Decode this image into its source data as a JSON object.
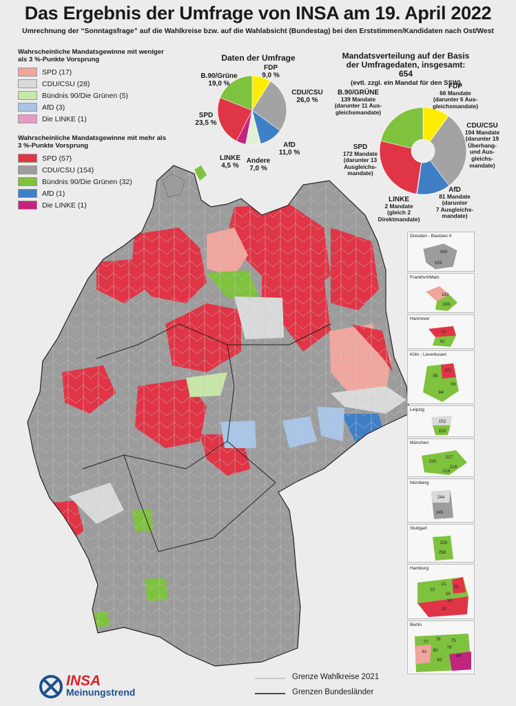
{
  "title": "Das Ergebnis der Umfrage von INSA am 19. April 2022",
  "subtitle": "Umrechnung der “Sonntagsfrage” auf die Wahlkreise bzw. auf die Wahlabsicht (Bundestag) bei den Erststimmen/Kandidaten nach Ost/West",
  "colors": {
    "spd_strong": "#e03546",
    "spd_weak": "#f0a59d",
    "cdu_strong": "#9c9c9c",
    "cdu_weak": "#dadada",
    "gruene_strong": "#7ec23e",
    "gruene_weak": "#c8e6a6",
    "afd_strong": "#3f7fc6",
    "afd_weak": "#a8c4e6",
    "linke_strong": "#c4247f",
    "linke_weak": "#e79bc4",
    "fdp": "#ffec00",
    "andere": "#e2f0d6"
  },
  "legend_weak": {
    "heading": "Wahrscheinliche Mandatsgewinne mit weniger als 3 %-Punkte Vorsprung",
    "items": [
      "SPD (17)",
      "CDU/CSU (28)",
      "Bündnis 90/Die Grünen (5)",
      "AfD (3)",
      "Die LINKE (1)"
    ]
  },
  "legend_strong": {
    "heading": "Wahrscheinliche Mandatsgewinne mit mehr als 3 %-Punkte Vorsprung",
    "items": [
      "SPD (57)",
      "CDU/CSU (154)",
      "Bündnis 90/Die Grünen (32)",
      "AfD (1)",
      "Die LINKE (1)"
    ]
  },
  "survey": {
    "title": "Daten der Umfrage",
    "slices": [
      {
        "party": "FDP",
        "pct": "9,0 %",
        "value": 9.0,
        "color": "#ffec00"
      },
      {
        "party": "CDU/CSU",
        "pct": "26,0 %",
        "value": 26.0,
        "color": "#a3a3a3"
      },
      {
        "party": "AfD",
        "pct": "11,0 %",
        "value": 11.0,
        "color": "#3f7fc6"
      },
      {
        "party": "Andere",
        "pct": "7,0 %",
        "value": 7.0,
        "color": "#e2f0d6"
      },
      {
        "party": "LINKE",
        "pct": "4,5 %",
        "value": 4.5,
        "color": "#c4247f"
      },
      {
        "party": "SPD",
        "pct": "23,5 %",
        "value": 23.5,
        "color": "#e03546"
      },
      {
        "party": "B.90/Grüne",
        "pct": "19,0 %",
        "value": 19.0,
        "color": "#7ec23e"
      }
    ]
  },
  "seats": {
    "title_1": "Mandatsverteilung auf der Basis",
    "title_2": "der Umfragedaten, insgesamt: 654",
    "title_3": "(evtl. zzgl. ein Mandat für den SSW)",
    "slices": [
      {
        "party": "FDP",
        "value": 66,
        "color": "#ffec00"
      },
      {
        "party": "CDU/CSU",
        "value": 194,
        "color": "#a3a3a3"
      },
      {
        "party": "AfD",
        "value": 81,
        "color": "#3f7fc6"
      },
      {
        "party": "LINKE",
        "value": 2,
        "color": "#c4247f"
      },
      {
        "party": "SPD",
        "value": 172,
        "color": "#e03546"
      },
      {
        "party": "B.90/GRÜNE",
        "value": 139,
        "color": "#7ec23e"
      }
    ],
    "labels": {
      "fdp": [
        "FDP",
        "66 Mandate",
        "(darunter 6 Aus-",
        "gleichsmandate)"
      ],
      "cdu": [
        "CDU/CSU",
        "194 Mandate",
        "(darunter 19",
        "Überhang-",
        "und Aus-",
        "gleichs-",
        "mandate)"
      ],
      "afd": [
        "AfD",
        "81 Mandate",
        "(darunter",
        "7 Ausgleichs-",
        "mandate)"
      ],
      "linke": [
        "LINKE",
        "2 Mandate",
        "(gleich 2",
        "Direktmandate)"
      ],
      "spd": [
        "SPD",
        "172 Mandate",
        "(darunter 13",
        "Ausgleichs-",
        "mandate)"
      ],
      "gruene": [
        "B.90/GRÜNE",
        "139 Mandate",
        "(darunter 11 Aus-",
        "gleichsmandate)"
      ]
    }
  },
  "insets": [
    {
      "title": "Dresden - Bautzen II",
      "numbers": [
        "160",
        "159"
      ]
    },
    {
      "title": "Frankfurt/Main",
      "numbers": [
        "182",
        "183"
      ]
    },
    {
      "title": "Hannover",
      "numbers": [
        "41",
        "42"
      ]
    },
    {
      "title": "Köln - Leverkusen",
      "numbers": [
        "101",
        "95",
        "93",
        "94"
      ]
    },
    {
      "title": "Leipzig",
      "numbers": [
        "152",
        "153"
      ]
    },
    {
      "title": "München",
      "numbers": [
        "217",
        "220",
        "218",
        "219"
      ]
    },
    {
      "title": "Nürnberg",
      "numbers": [
        "244",
        "245"
      ]
    },
    {
      "title": "Stuttgart",
      "numbers": [
        "259",
        "258"
      ]
    },
    {
      "title": "Hamburg",
      "numbers": [
        "21",
        "20",
        "22",
        "19",
        "18",
        "23"
      ]
    },
    {
      "title": "Berlin",
      "numbers": [
        "77",
        "76",
        "75",
        "81",
        "80",
        "78",
        "84",
        "83"
      ]
    }
  ],
  "bottom_legend": {
    "wahlkreise": "Grenze Wahlkreise 2021",
    "laender": "Grenzen Bundesländer"
  },
  "logo": {
    "brand": "INSA",
    "sub": "Meinungstrend"
  }
}
